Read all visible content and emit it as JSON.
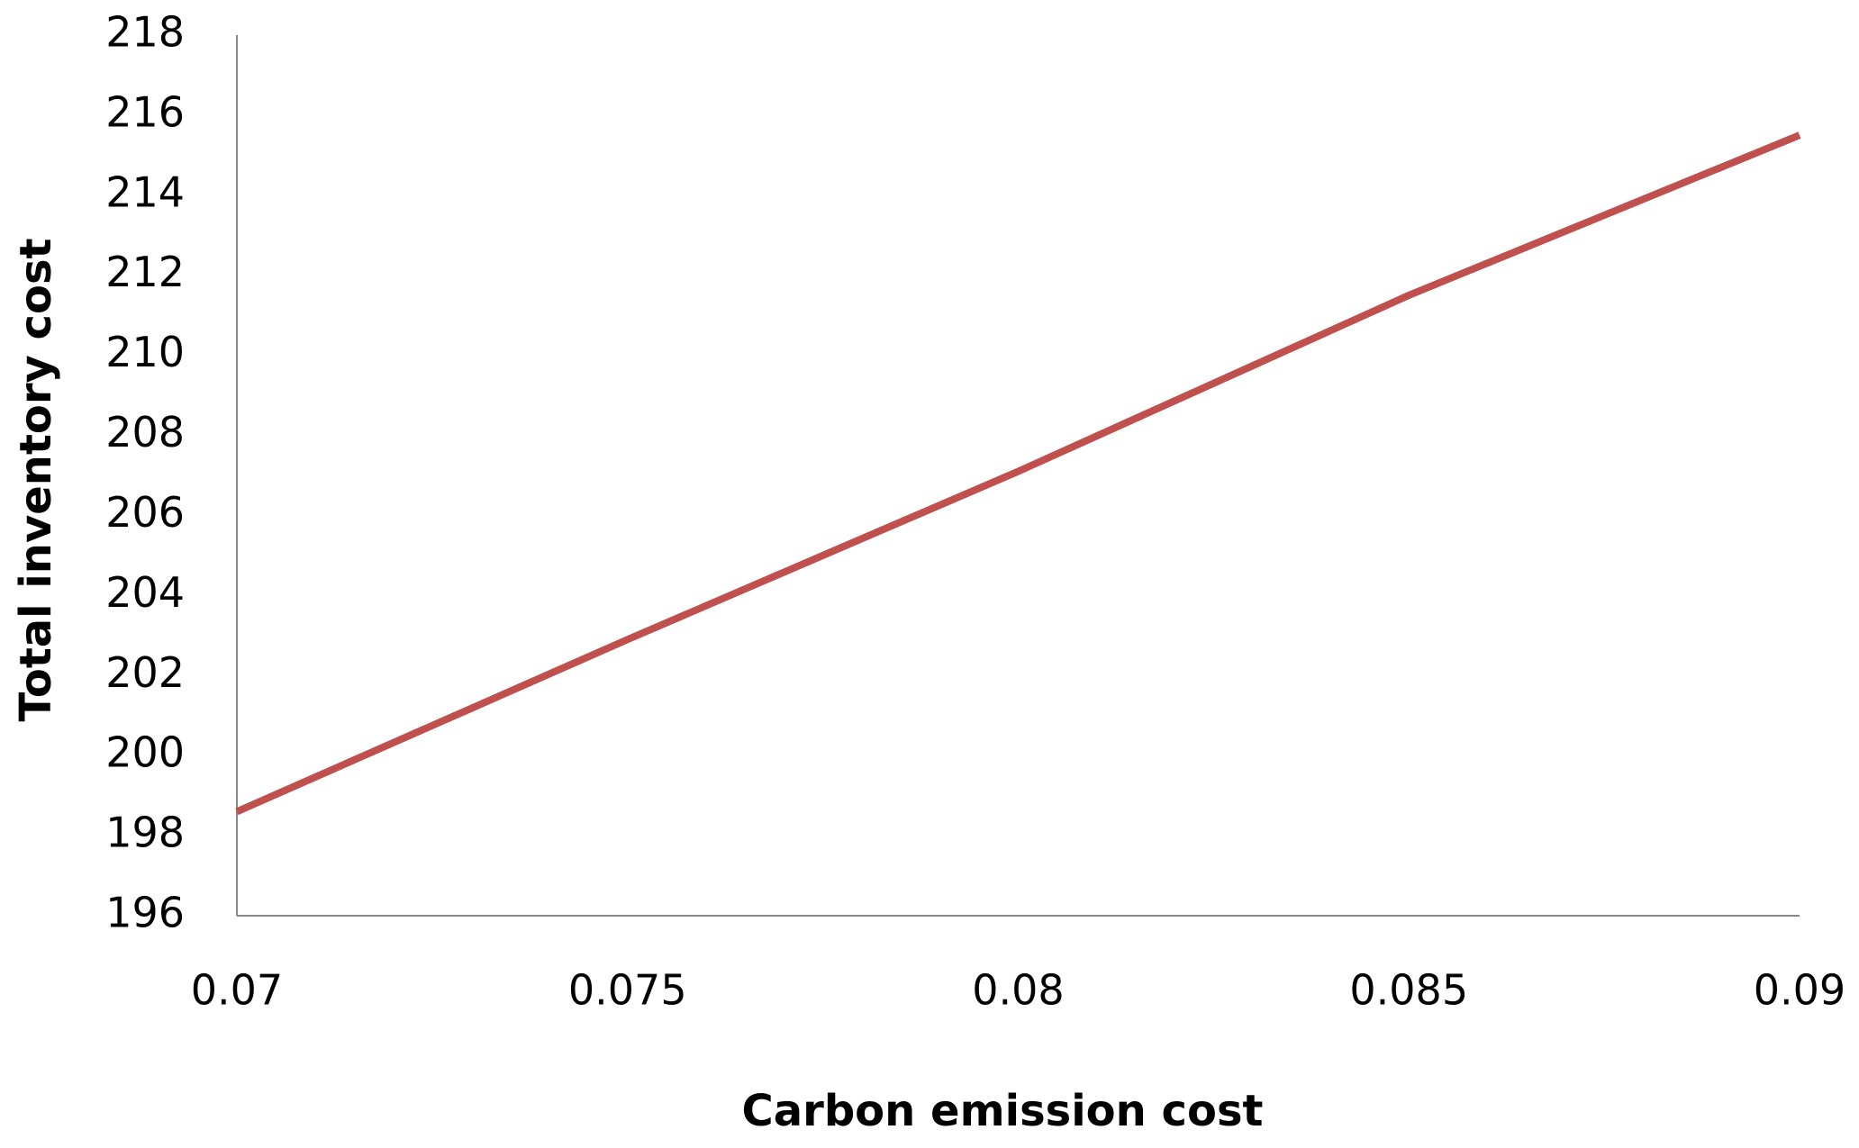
{
  "chart_data": {
    "type": "line",
    "x_label": "Carbon emission cost",
    "y_label": "Total inventory cost",
    "x": [
      0.07,
      0.075,
      0.08,
      0.085,
      0.09
    ],
    "series": [
      {
        "name": "Total inventory cost",
        "color": "#c0504d",
        "values": [
          198.6,
          202.9,
          207.1,
          211.5,
          215.5
        ]
      }
    ],
    "xlim": [
      0.07,
      0.09
    ],
    "xticks": [
      0.07,
      0.075,
      0.08,
      0.085,
      0.09
    ],
    "ylim": [
      196,
      218
    ],
    "yticks": [
      196,
      198,
      200,
      202,
      204,
      206,
      208,
      210,
      212,
      214,
      216,
      218
    ],
    "grid": false
  }
}
